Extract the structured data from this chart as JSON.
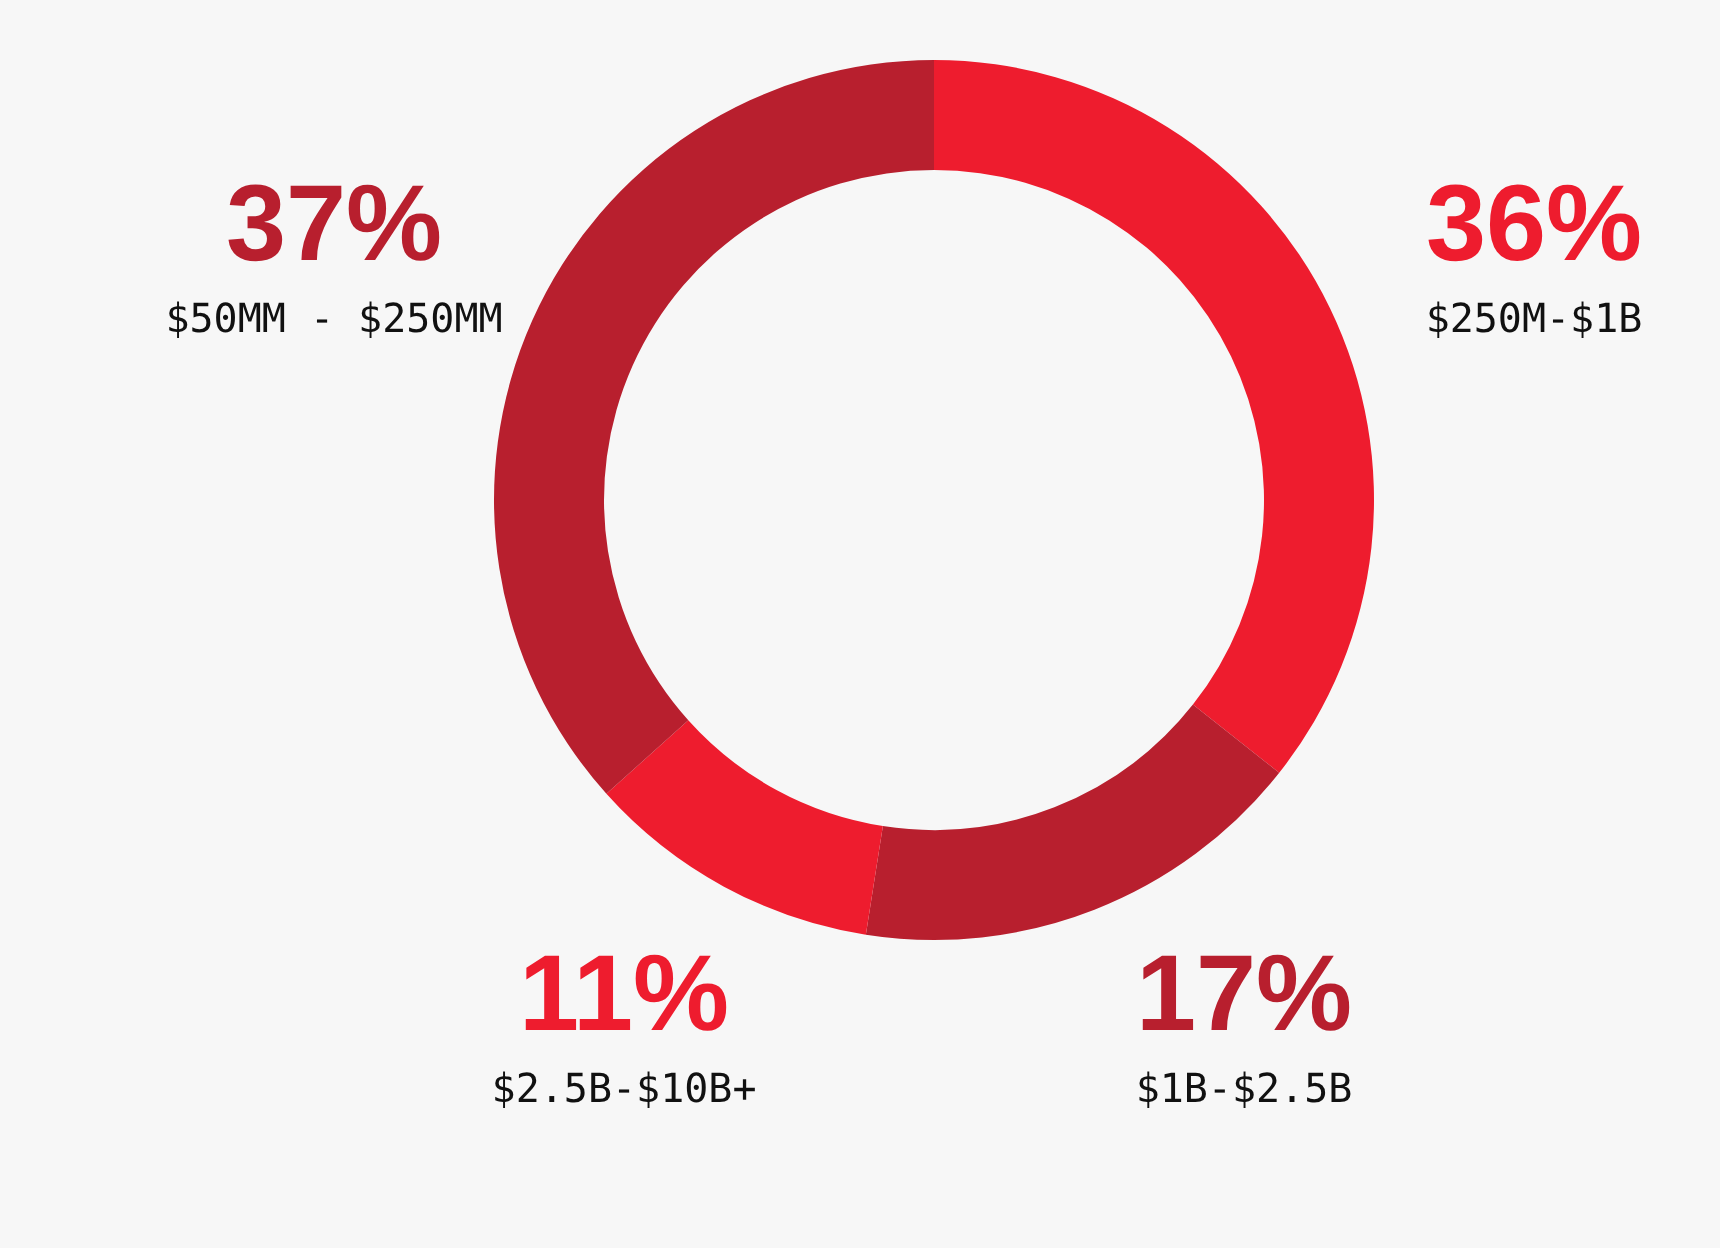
{
  "chart_data": {
    "type": "donut",
    "categories": [
      "$250M-$1B",
      "$1B-$2.5B",
      "$2.5B-$10B+",
      "$50MM - $250MM"
    ],
    "values": [
      36,
      17,
      11,
      37
    ],
    "colors": [
      "#ee1c2e",
      "#b81f2e",
      "#ee1c2e",
      "#b81f2e"
    ],
    "value_labels": [
      "36%",
      "17%",
      "11%",
      "37%"
    ],
    "legend": false
  }
}
